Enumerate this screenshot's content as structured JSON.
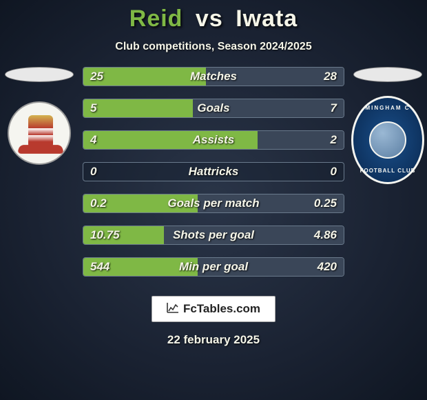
{
  "title": {
    "player1": "Reid",
    "vs": "vs",
    "player2": "Iwata"
  },
  "subtitle": "Club competitions, Season 2024/2025",
  "colors": {
    "player1_bar": "#7fb845",
    "player2_bar": "#3a4658",
    "text": "#f5f5e8",
    "border": "#6a7a8c",
    "bg_inner": "#2a3548",
    "bg_outer": "#0f1622"
  },
  "bar_style": {
    "height": 28,
    "gap": 18,
    "font_size": 17,
    "font_weight": 800,
    "font_style": "italic",
    "border_radius": 4
  },
  "stats": [
    {
      "label": "Matches",
      "p1": "25",
      "p2": "28",
      "p1_pct": 47,
      "p2_pct": 53
    },
    {
      "label": "Goals",
      "p1": "5",
      "p2": "7",
      "p1_pct": 42,
      "p2_pct": 58
    },
    {
      "label": "Assists",
      "p1": "4",
      "p2": "2",
      "p1_pct": 67,
      "p2_pct": 33
    },
    {
      "label": "Hattricks",
      "p1": "0",
      "p2": "0",
      "p1_pct": 0,
      "p2_pct": 0
    },
    {
      "label": "Goals per match",
      "p1": "0.2",
      "p2": "0.25",
      "p1_pct": 44,
      "p2_pct": 56
    },
    {
      "label": "Shots per goal",
      "p1": "10.75",
      "p2": "4.86",
      "p1_pct": 31,
      "p2_pct": 69
    },
    {
      "label": "Min per goal",
      "p1": "544",
      "p2": "420",
      "p1_pct": 44,
      "p2_pct": 56
    }
  ],
  "crest_right": {
    "text_top": "MINGHAM C",
    "text_bottom": "FOOTBALL CLUB"
  },
  "footer": {
    "brand": "FcTables.com"
  },
  "date": "22 february 2025"
}
